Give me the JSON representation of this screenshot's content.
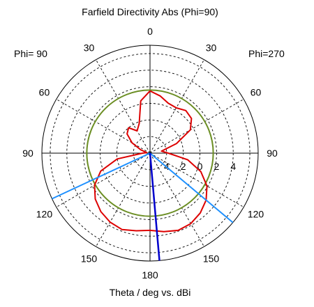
{
  "chart_data": {
    "type": "polar",
    "title": "Farfield Directivity Abs (Phi=90)",
    "xlabel": "Theta / deg vs. dBi",
    "left_label": "Phi= 90",
    "right_label": "Phi=270",
    "angle_labels": [
      {
        "angle": 0,
        "text": "0"
      },
      {
        "angle": 30,
        "text": "30"
      },
      {
        "angle": -30,
        "text": "30"
      },
      {
        "angle": 60,
        "text": "60"
      },
      {
        "angle": -60,
        "text": "60"
      },
      {
        "angle": 90,
        "text": "90"
      },
      {
        "angle": -90,
        "text": "90"
      },
      {
        "angle": 120,
        "text": "120"
      },
      {
        "angle": -120,
        "text": "120"
      },
      {
        "angle": 150,
        "text": "150"
      },
      {
        "angle": -150,
        "text": "150"
      },
      {
        "angle": 180,
        "text": "180"
      }
    ],
    "radial_range": [
      -6,
      7
    ],
    "radial_ticks": [
      -4,
      -2,
      0,
      2,
      4
    ],
    "radial_tick_labels": [
      "4",
      "2",
      "0",
      "2",
      "4"
    ],
    "colors": {
      "pattern": "#dd0000",
      "reference_circle": "#6b8e23",
      "beam_lines": "#1e90ff",
      "main_lobe": "#0000cc",
      "grid": "#000000"
    },
    "reference_circle_level": 1.6,
    "beam_angles": [
      -130,
      115
    ],
    "main_lobe_angle": -175,
    "series": [
      {
        "points": [
          [
            0,
            1.5
          ],
          [
            10,
            0.4
          ],
          [
            20,
            -2.2
          ],
          [
            30,
            -2.9
          ],
          [
            40,
            -2.0
          ],
          [
            50,
            -2.4
          ],
          [
            60,
            -3.5
          ],
          [
            70,
            -4.8
          ],
          [
            80,
            -5.6
          ],
          [
            90,
            -5.1
          ],
          [
            100,
            -2.0
          ],
          [
            110,
            0.3
          ],
          [
            120,
            1.7
          ],
          [
            130,
            2.6
          ],
          [
            140,
            3.2
          ],
          [
            150,
            3.6
          ],
          [
            160,
            3.8
          ],
          [
            170,
            3.5
          ],
          [
            180,
            3.3
          ],
          [
            190,
            3.6
          ],
          [
            200,
            3.9
          ],
          [
            210,
            3.8
          ],
          [
            220,
            3.4
          ],
          [
            230,
            2.8
          ],
          [
            240,
            1.9
          ],
          [
            250,
            0.5
          ],
          [
            260,
            -1.4
          ],
          [
            270,
            -3.8
          ],
          [
            280,
            -4.6
          ],
          [
            290,
            -2.6
          ],
          [
            300,
            -0.4
          ],
          [
            310,
            0.5
          ],
          [
            320,
            0.7
          ],
          [
            330,
            0.3
          ],
          [
            340,
            0.4
          ],
          [
            350,
            1.0
          ],
          [
            360,
            1.5
          ]
        ]
      }
    ]
  }
}
